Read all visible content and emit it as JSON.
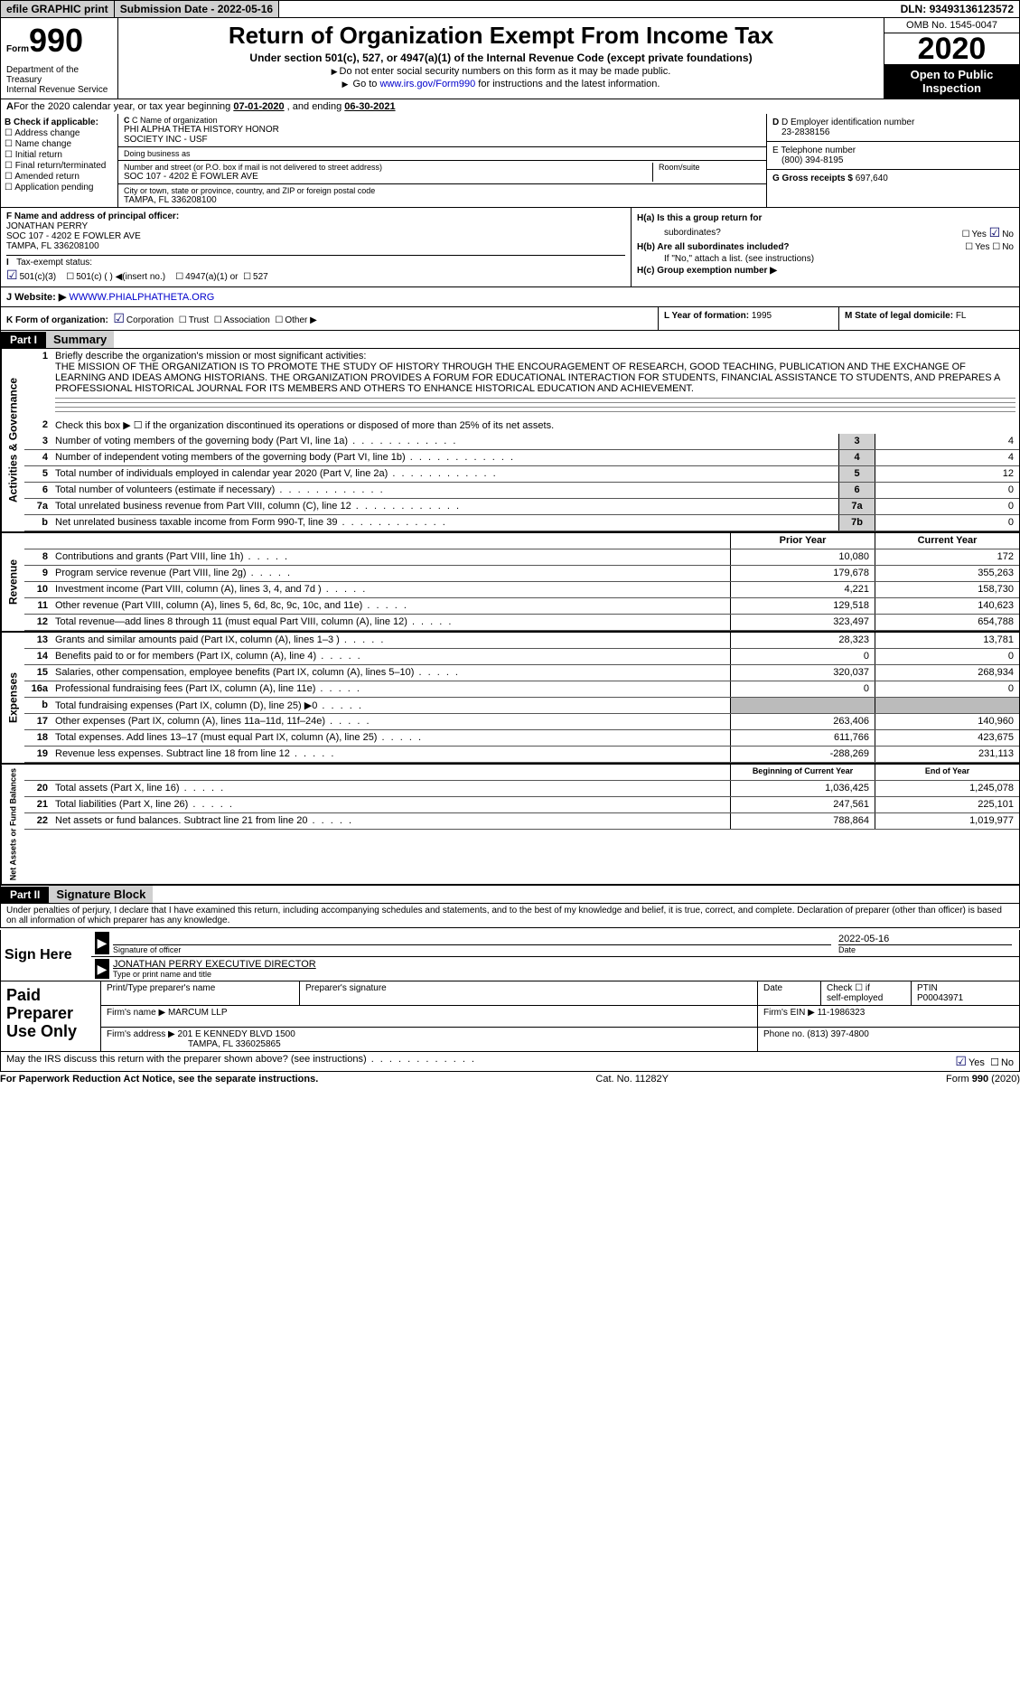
{
  "header": {
    "efile": "efile GRAPHIC print",
    "submission_label": "Submission Date - ",
    "submission_date": "2022-05-16",
    "dln_label": "DLN: ",
    "dln": "93493136123572"
  },
  "topbox": {
    "form_label": "Form",
    "form_num": "990",
    "dept": "Department of the Treasury\nInternal Revenue Service",
    "title": "Return of Organization Exempt From Income Tax",
    "subtitle": "Under section 501(c), 527, or 4947(a)(1) of the Internal Revenue Code (except private foundations)",
    "note1": "Do not enter social security numbers on this form as it may be made public.",
    "note2_a": "Go to ",
    "note2_link": "www.irs.gov/Form990",
    "note2_b": " for instructions and the latest information.",
    "omb": "OMB No. 1545-0047",
    "year": "2020",
    "open": "Open to Public Inspection"
  },
  "lineA": {
    "text_a": "For the 2020 calendar year, or tax year beginning ",
    "begin": "07-01-2020",
    "text_b": "   , and ending ",
    "end": "06-30-2021"
  },
  "colB": {
    "label": "B Check if applicable:",
    "opts": [
      "Address change",
      "Name change",
      "Initial return",
      "Final return/terminated",
      "Amended return",
      "Application pending"
    ]
  },
  "colC": {
    "c_label": "C Name of organization",
    "org1": "PHI ALPHA THETA HISTORY HONOR",
    "org2": "SOCIETY INC - USF",
    "dba_label": "Doing business as",
    "dba": "",
    "street_label": "Number and street (or P.O. box if mail is not delivered to street address)",
    "street": "SOC 107 - 4202 E FOWLER AVE",
    "suite_label": "Room/suite",
    "city_label": "City or town, state or province, country, and ZIP or foreign postal code",
    "city": "TAMPA, FL  336208100"
  },
  "colDE": {
    "d_label": "D Employer identification number",
    "ein": "23-2838156",
    "e_label": "E Telephone number",
    "phone": "(800) 394-8195",
    "g_label": "G Gross receipts $ ",
    "gross": "697,640"
  },
  "colF": {
    "label": "F Name and address of principal officer:",
    "name": "JONATHAN PERRY",
    "addr1": "SOC 107 - 4202 E FOWLER AVE",
    "addr2": "TAMPA, FL  336208100"
  },
  "colH": {
    "ha": "H(a)  Is this a group return for",
    "ha2": "subordinates?",
    "hb": "H(b)  Are all subordinates included?",
    "hb_note": "If \"No,\" attach a list. (see instructions)",
    "hc": "H(c)  Group exemption number ▶",
    "yes": "Yes",
    "no": "No"
  },
  "rowI": {
    "label": "I   Tax-exempt status:",
    "o1": "501(c)(3)",
    "o2": "501(c) (  ) ◀(insert no.)",
    "o3": "4947(a)(1) or",
    "o4": "527"
  },
  "rowJ": {
    "label": "J   Website: ▶ ",
    "url": "WWWW.PHIALPHATHETA.ORG"
  },
  "rowK": {
    "label": "K Form of organization:",
    "opts": [
      "Corporation",
      "Trust",
      "Association",
      "Other ▶"
    ],
    "L_label": "L Year of formation: ",
    "L_val": "1995",
    "M_label": "M State of legal domicile: ",
    "M_val": "FL"
  },
  "part1": {
    "hdr": "Part I",
    "title": "Summary",
    "l1_label": "Briefly describe the organization's mission or most significant activities:",
    "l1_text": "THE MISSION OF THE ORGANIZATION IS TO PROMOTE THE STUDY OF HISTORY THROUGH THE ENCOURAGEMENT OF RESEARCH, GOOD TEACHING, PUBLICATION AND THE EXCHANGE OF LEARNING AND IDEAS AMONG HISTORIANS. THE ORGANIZATION PROVIDES A FORUM FOR EDUCATIONAL INTERACTION FOR STUDENTS, FINANCIAL ASSISTANCE TO STUDENTS, AND PREPARES A PROFESSIONAL HISTORICAL JOURNAL FOR ITS MEMBERS AND OTHERS TO ENHANCE HISTORICAL EDUCATION AND ACHIEVEMENT."
  },
  "gov": {
    "vlabel": "Activities & Governance",
    "l2": "Check this box ▶ ☐  if the organization discontinued its operations or disposed of more than 25% of its net assets.",
    "rows": [
      {
        "n": "3",
        "d": "Number of voting members of the governing body (Part VI, line 1a)",
        "box": "3",
        "v": "4"
      },
      {
        "n": "4",
        "d": "Number of independent voting members of the governing body (Part VI, line 1b)",
        "box": "4",
        "v": "4"
      },
      {
        "n": "5",
        "d": "Total number of individuals employed in calendar year 2020 (Part V, line 2a)",
        "box": "5",
        "v": "12"
      },
      {
        "n": "6",
        "d": "Total number of volunteers (estimate if necessary)",
        "box": "6",
        "v": "0"
      },
      {
        "n": "7a",
        "d": "Total unrelated business revenue from Part VIII, column (C), line 12",
        "box": "7a",
        "v": "0"
      },
      {
        "n": "b",
        "d": "Net unrelated business taxable income from Form 990-T, line 39",
        "box": "7b",
        "v": "0"
      }
    ]
  },
  "rev": {
    "vlabel": "Revenue",
    "hdr1": "Prior Year",
    "hdr2": "Current Year",
    "rows": [
      {
        "n": "8",
        "d": "Contributions and grants (Part VIII, line 1h)",
        "v1": "10,080",
        "v2": "172"
      },
      {
        "n": "9",
        "d": "Program service revenue (Part VIII, line 2g)",
        "v1": "179,678",
        "v2": "355,263"
      },
      {
        "n": "10",
        "d": "Investment income (Part VIII, column (A), lines 3, 4, and 7d )",
        "v1": "4,221",
        "v2": "158,730"
      },
      {
        "n": "11",
        "d": "Other revenue (Part VIII, column (A), lines 5, 6d, 8c, 9c, 10c, and 11e)",
        "v1": "129,518",
        "v2": "140,623"
      },
      {
        "n": "12",
        "d": "Total revenue—add lines 8 through 11 (must equal Part VIII, column (A), line 12)",
        "v1": "323,497",
        "v2": "654,788"
      }
    ]
  },
  "exp": {
    "vlabel": "Expenses",
    "rows": [
      {
        "n": "13",
        "d": "Grants and similar amounts paid (Part IX, column (A), lines 1–3 )",
        "v1": "28,323",
        "v2": "13,781"
      },
      {
        "n": "14",
        "d": "Benefits paid to or for members (Part IX, column (A), line 4)",
        "v1": "0",
        "v2": "0"
      },
      {
        "n": "15",
        "d": "Salaries, other compensation, employee benefits (Part IX, column (A), lines 5–10)",
        "v1": "320,037",
        "v2": "268,934"
      },
      {
        "n": "16a",
        "d": "Professional fundraising fees (Part IX, column (A), line 11e)",
        "v1": "0",
        "v2": "0"
      },
      {
        "n": "b",
        "d": "Total fundraising expenses (Part IX, column (D), line 25) ▶0",
        "v1": "",
        "v2": "",
        "grey": true
      },
      {
        "n": "17",
        "d": "Other expenses (Part IX, column (A), lines 11a–11d, 11f–24e)",
        "v1": "263,406",
        "v2": "140,960"
      },
      {
        "n": "18",
        "d": "Total expenses. Add lines 13–17 (must equal Part IX, column (A), line 25)",
        "v1": "611,766",
        "v2": "423,675"
      },
      {
        "n": "19",
        "d": "Revenue less expenses. Subtract line 18 from line 12",
        "v1": "-288,269",
        "v2": "231,113"
      }
    ]
  },
  "net": {
    "vlabel": "Net Assets or Fund Balances",
    "hdr1": "Beginning of Current Year",
    "hdr2": "End of Year",
    "rows": [
      {
        "n": "20",
        "d": "Total assets (Part X, line 16)",
        "v1": "1,036,425",
        "v2": "1,245,078"
      },
      {
        "n": "21",
        "d": "Total liabilities (Part X, line 26)",
        "v1": "247,561",
        "v2": "225,101"
      },
      {
        "n": "22",
        "d": "Net assets or fund balances. Subtract line 21 from line 20",
        "v1": "788,864",
        "v2": "1,019,977"
      }
    ]
  },
  "part2": {
    "hdr": "Part II",
    "title": "Signature Block",
    "decl": "Under penalties of perjury, I declare that I have examined this return, including accompanying schedules and statements, and to the best of my knowledge and belief, it is true, correct, and complete. Declaration of preparer (other than officer) is based on all information of which preparer has any knowledge.",
    "sign_here": "Sign Here",
    "sig_officer": "Signature of officer",
    "sig_date": "Date",
    "sig_date_val": "2022-05-16",
    "sig_name": "JONATHAN PERRY  EXECUTIVE DIRECTOR",
    "sig_name_lbl": "Type or print name and title"
  },
  "paid": {
    "label": "Paid Preparer Use Only",
    "h1": "Print/Type preparer's name",
    "h2": "Preparer's signature",
    "h3": "Date",
    "h4a": "Check ☐ if",
    "h4b": "self-employed",
    "h5": "PTIN",
    "ptin": "P00043971",
    "firm_name_lbl": "Firm's name    ▶ ",
    "firm_name": "MARCUM LLP",
    "firm_ein_lbl": "Firm's EIN ▶ ",
    "firm_ein": "11-1986323",
    "firm_addr_lbl": "Firm's address ▶ ",
    "firm_addr1": "201 E KENNEDY BLVD 1500",
    "firm_addr2": "TAMPA, FL  336025865",
    "phone_lbl": "Phone no. ",
    "phone": "(813) 397-4800"
  },
  "discuss": {
    "text": "May the IRS discuss this return with the preparer shown above? (see instructions)",
    "yes": "Yes",
    "no": "No"
  },
  "footer": {
    "left": "For Paperwork Reduction Act Notice, see the separate instructions.",
    "mid": "Cat. No. 11282Y",
    "right": "Form 990 (2020)"
  }
}
